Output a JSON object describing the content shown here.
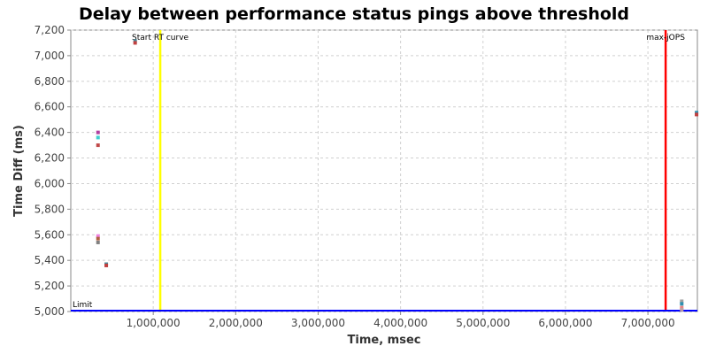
{
  "chart_data": {
    "type": "scatter",
    "title": "Delay between performance status pings above threshold",
    "xlabel": "Time, msec",
    "ylabel": "Time Diff (ms)",
    "xlim": [
      0,
      7600000
    ],
    "ylim": [
      5000,
      7200
    ],
    "grid": true,
    "x_ticks": [
      1000000,
      2000000,
      3000000,
      4000000,
      5000000,
      6000000,
      7000000
    ],
    "x_tick_labels": [
      "1,000,000",
      "2,000,000",
      "3,000,000",
      "4,000,000",
      "5,000,000",
      "6,000,000",
      "7,000,000"
    ],
    "y_ticks": [
      5000,
      5200,
      5400,
      5600,
      5800,
      6000,
      6200,
      6400,
      6600,
      6800,
      7000,
      7200
    ],
    "y_tick_labels": [
      "5,000",
      "5,200",
      "5,400",
      "5,600",
      "5,800",
      "6,000",
      "6,200",
      "6,400",
      "6,600",
      "6,800",
      "7,000",
      "7,200"
    ],
    "markers": [
      {
        "label": "Start RT curve",
        "x": 1085000,
        "color": "#ffff00",
        "orientation": "vertical"
      },
      {
        "label": "max-jOPS",
        "x": 7215000,
        "color": "#ff0000",
        "orientation": "vertical"
      },
      {
        "label": "Limit",
        "y": 5000,
        "color": "#0000ff",
        "orientation": "horizontal"
      }
    ],
    "points": [
      {
        "x": 330000,
        "y": 6400,
        "color": "#b040a0"
      },
      {
        "x": 330000,
        "y": 6360,
        "color": "#40d0d0"
      },
      {
        "x": 330000,
        "y": 6300,
        "color": "#c04848"
      },
      {
        "x": 330000,
        "y": 5590,
        "color": "#f080e0"
      },
      {
        "x": 330000,
        "y": 5570,
        "color": "#b06040"
      },
      {
        "x": 330000,
        "y": 5540,
        "color": "#808080"
      },
      {
        "x": 430000,
        "y": 5370,
        "color": "#4a8a9a"
      },
      {
        "x": 430000,
        "y": 5360,
        "color": "#c04040"
      },
      {
        "x": 780000,
        "y": 7115,
        "color": "#4a8a9a"
      },
      {
        "x": 780000,
        "y": 7100,
        "color": "#c04040"
      },
      {
        "x": 7410000,
        "y": 5080,
        "color": "#a0a0a0"
      },
      {
        "x": 7410000,
        "y": 5060,
        "color": "#3090b0"
      },
      {
        "x": 7410000,
        "y": 5030,
        "color": "#f08080"
      },
      {
        "x": 7410000,
        "y": 5015,
        "color": "#c0a0a0"
      },
      {
        "x": 7590000,
        "y": 6555,
        "color": "#3090b0"
      },
      {
        "x": 7590000,
        "y": 6540,
        "color": "#c04040"
      }
    ]
  }
}
